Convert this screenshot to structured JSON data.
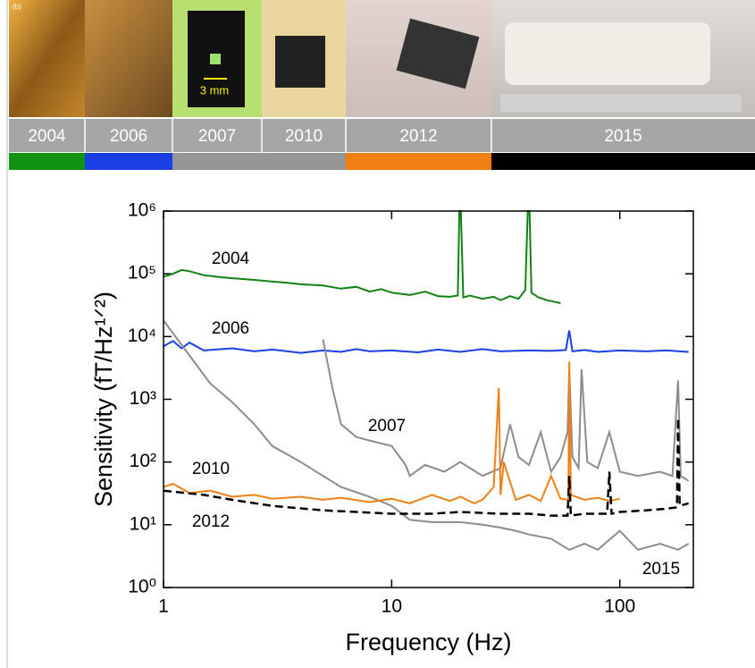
{
  "panel_label": "(b)",
  "photo_scale_label": "3 mm",
  "timeline": [
    "2004",
    "2006",
    "2007",
    "2010",
    "2012",
    "2015"
  ],
  "chart_data": {
    "type": "line",
    "xlabel": "Frequency (Hz)",
    "ylabel": "Sensitivity (fT/Hz¹ᐟ²)",
    "xscale": "log",
    "yscale": "log",
    "xlim": [
      1,
      210
    ],
    "ylim": [
      1,
      1000000
    ],
    "xticks": [
      1,
      10,
      100
    ],
    "yticks": [
      {
        "value": 1,
        "label": "10⁰"
      },
      {
        "value": 10,
        "label": "10¹"
      },
      {
        "value": 100,
        "label": "10²"
      },
      {
        "value": 1000,
        "label": "10³"
      },
      {
        "value": 10000,
        "label": "10⁴"
      },
      {
        "value": 100000,
        "label": "10⁵"
      },
      {
        "value": 1000000,
        "label": "10⁶"
      }
    ],
    "series": [
      {
        "name": "2004",
        "color": "#128312",
        "dash": false,
        "x": [
          1,
          1.1,
          1.2,
          1.3,
          1.5,
          1.8,
          2,
          2.5,
          3,
          3.5,
          4,
          5,
          6,
          7,
          8,
          9,
          10,
          12,
          14,
          16,
          18,
          19.5,
          19.8,
          20.1,
          20.6,
          22,
          25,
          28,
          30,
          33,
          36,
          38.5,
          39.5,
          40.2,
          41,
          44,
          48,
          55
        ],
        "values": [
          90000,
          100000,
          115000,
          110000,
          95000,
          88000,
          85000,
          80000,
          75000,
          72000,
          68000,
          65000,
          58000,
          62000,
          52000,
          57000,
          50000,
          46000,
          52000,
          44000,
          43000,
          45000,
          1000000,
          1000000,
          42000,
          45000,
          40000,
          43000,
          38000,
          44000,
          40000,
          55000,
          1000000,
          1000000,
          50000,
          42000,
          38000,
          34000
        ]
      },
      {
        "name": "2006",
        "color": "#1a3fe6",
        "dash": false,
        "x": [
          1,
          1.1,
          1.2,
          1.3,
          1.5,
          2,
          2.5,
          3,
          4,
          5,
          6,
          7,
          8,
          10,
          13,
          16,
          20,
          25,
          30,
          40,
          50,
          58,
          60,
          62,
          70,
          80,
          100,
          130,
          160,
          200
        ],
        "values": [
          7000,
          8500,
          6500,
          8000,
          6000,
          6500,
          5800,
          6200,
          5500,
          6000,
          5700,
          6300,
          5800,
          6000,
          5600,
          6200,
          5700,
          6300,
          5800,
          6000,
          5900,
          6100,
          12500,
          5800,
          6100,
          5700,
          6000,
          5800,
          6000,
          5700
        ]
      },
      {
        "name": "2007",
        "color": "#8c8c8c",
        "dash": false,
        "x": [
          5,
          5.5,
          6,
          7,
          8,
          10,
          11.5,
          12,
          14,
          17,
          20,
          25,
          30,
          33,
          36,
          40,
          45,
          50,
          55,
          59,
          60,
          62,
          66,
          68,
          72,
          80,
          90,
          100,
          120,
          150,
          170,
          180,
          185,
          200
        ],
        "values": [
          9000,
          1500,
          400,
          250,
          220,
          180,
          90,
          60,
          90,
          70,
          100,
          60,
          80,
          400,
          120,
          90,
          300,
          70,
          120,
          300,
          3000,
          120,
          80,
          3000,
          100,
          80,
          300,
          70,
          60,
          70,
          60,
          2000,
          60,
          50
        ]
      },
      {
        "name": "2010",
        "color": "#8c8c8c",
        "dash": false,
        "x": [
          1,
          1.3,
          1.6,
          2,
          2.5,
          3,
          4,
          5,
          6,
          8,
          10,
          12,
          15,
          20,
          25,
          30,
          35,
          40,
          50,
          60,
          70,
          80,
          100,
          120,
          150,
          180,
          200
        ],
        "values": [
          18000,
          5000,
          1800,
          900,
          400,
          180,
          100,
          60,
          40,
          28,
          20,
          12,
          11,
          11,
          10,
          9,
          8,
          7,
          6,
          4,
          5,
          4,
          8,
          4,
          5,
          4,
          5
        ]
      },
      {
        "name": "2012",
        "color": "#f07f14",
        "dash": false,
        "x": [
          1,
          1.1,
          1.3,
          1.6,
          2,
          2.5,
          3,
          4,
          5,
          6,
          8,
          10,
          12,
          15,
          18,
          20,
          23,
          25,
          28,
          29.5,
          30,
          31,
          35,
          40,
          45,
          50,
          55,
          59.5,
          60,
          61,
          70,
          80,
          90,
          100
        ],
        "values": [
          40,
          45,
          32,
          35,
          28,
          30,
          26,
          28,
          25,
          27,
          23,
          26,
          22,
          30,
          24,
          28,
          22,
          25,
          40,
          1500,
          30,
          100,
          25,
          30,
          24,
          60,
          26,
          25,
          4000,
          30,
          25,
          27,
          24,
          26
        ]
      },
      {
        "name": "2015",
        "color": "#000000",
        "dash": true,
        "x": [
          1,
          1.5,
          2,
          3,
          5,
          7,
          10,
          15,
          20,
          30,
          40,
          50,
          59,
          60,
          61,
          70,
          80,
          88,
          90,
          92,
          100,
          130,
          160,
          178,
          180,
          183,
          200
        ],
        "values": [
          35,
          30,
          25,
          20,
          17,
          16,
          15,
          15,
          16,
          15,
          15,
          14,
          14,
          60,
          14,
          15,
          15,
          15,
          70,
          15,
          16,
          17,
          18,
          19,
          500,
          20,
          22
        ]
      }
    ]
  }
}
